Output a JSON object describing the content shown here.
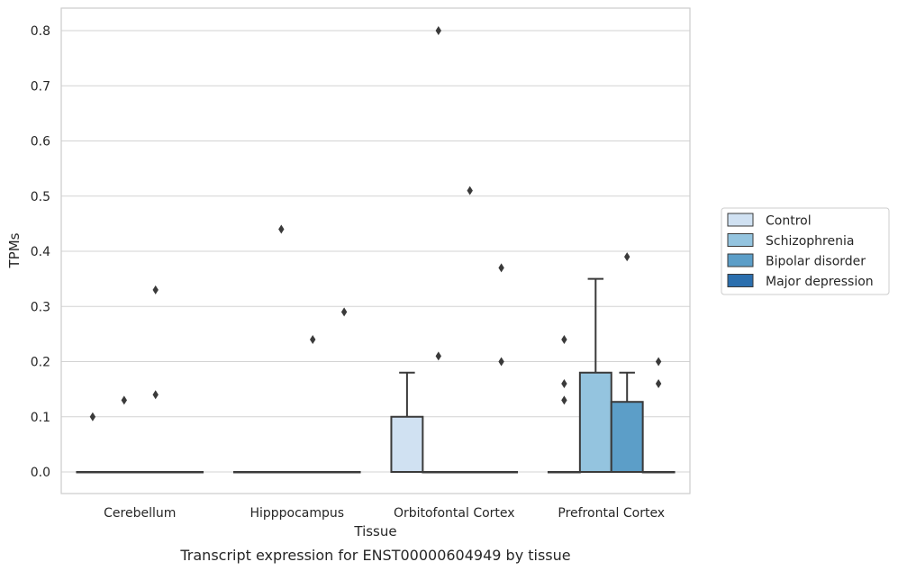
{
  "chart_data": {
    "type": "box",
    "xlabel": "Tissue",
    "ylabel": "TPMs",
    "caption": "Transcript expression for ENST00000604949 by tissue",
    "categories": [
      "Cerebellum",
      "Hipppocampus",
      "Orbitofontal Cortex",
      "Prefrontal Cortex"
    ],
    "ylim": [
      -0.04,
      0.84
    ],
    "yticks": [
      "0.0",
      "0.1",
      "0.2",
      "0.3",
      "0.4",
      "0.5",
      "0.6",
      "0.7",
      "0.8"
    ],
    "grid": "horizontal",
    "legend_position": "right",
    "series": [
      {
        "name": "Control",
        "color": "#d0e1f2",
        "boxes": [
          {
            "q1": 0,
            "median": 0,
            "q3": 0,
            "whisker_low": 0,
            "whisker_high": 0,
            "outliers": [
              0.1
            ]
          },
          {
            "q1": 0,
            "median": 0,
            "q3": 0,
            "whisker_low": 0,
            "whisker_high": 0,
            "outliers": []
          },
          {
            "q1": 0,
            "median": 0,
            "q3": 0.1,
            "whisker_low": 0,
            "whisker_high": 0.18,
            "outliers": []
          },
          {
            "q1": 0,
            "median": 0,
            "q3": 0,
            "whisker_low": 0,
            "whisker_high": 0,
            "outliers": [
              0.13,
              0.16,
              0.24
            ]
          }
        ]
      },
      {
        "name": "Schizophrenia",
        "color": "#94c4df",
        "boxes": [
          {
            "q1": 0,
            "median": 0,
            "q3": 0,
            "whisker_low": 0,
            "whisker_high": 0,
            "outliers": [
              0.13
            ]
          },
          {
            "q1": 0,
            "median": 0,
            "q3": 0,
            "whisker_low": 0,
            "whisker_high": 0,
            "outliers": [
              0.44
            ]
          },
          {
            "q1": 0,
            "median": 0,
            "q3": 0,
            "whisker_low": 0,
            "whisker_high": 0,
            "outliers": [
              0.8,
              0.21
            ]
          },
          {
            "q1": 0,
            "median": 0,
            "q3": 0.18,
            "whisker_low": 0,
            "whisker_high": 0.35,
            "outliers": []
          }
        ]
      },
      {
        "name": "Bipolar disorder",
        "color": "#5c9ec8",
        "boxes": [
          {
            "q1": 0,
            "median": 0,
            "q3": 0,
            "whisker_low": 0,
            "whisker_high": 0,
            "outliers": [
              0.14,
              0.33
            ]
          },
          {
            "q1": 0,
            "median": 0,
            "q3": 0,
            "whisker_low": 0,
            "whisker_high": 0,
            "outliers": [
              0.24
            ]
          },
          {
            "q1": 0,
            "median": 0,
            "q3": 0,
            "whisker_low": 0,
            "whisker_high": 0,
            "outliers": [
              0.51
            ]
          },
          {
            "q1": 0,
            "median": 0,
            "q3": 0.127,
            "whisker_low": 0,
            "whisker_high": 0.18,
            "outliers": [
              0.39
            ]
          }
        ]
      },
      {
        "name": "Major depression",
        "color": "#2b6fae",
        "boxes": [
          {
            "q1": 0,
            "median": 0,
            "q3": 0,
            "whisker_low": 0,
            "whisker_high": 0,
            "outliers": []
          },
          {
            "q1": 0,
            "median": 0,
            "q3": 0,
            "whisker_low": 0,
            "whisker_high": 0,
            "outliers": [
              0.29
            ]
          },
          {
            "q1": 0,
            "median": 0,
            "q3": 0,
            "whisker_low": 0,
            "whisker_high": 0,
            "outliers": [
              0.37,
              0.2
            ]
          },
          {
            "q1": 0,
            "median": 0,
            "q3": 0,
            "whisker_low": 0,
            "whisker_high": 0,
            "outliers": [
              0.16,
              0.2
            ]
          }
        ]
      }
    ]
  }
}
